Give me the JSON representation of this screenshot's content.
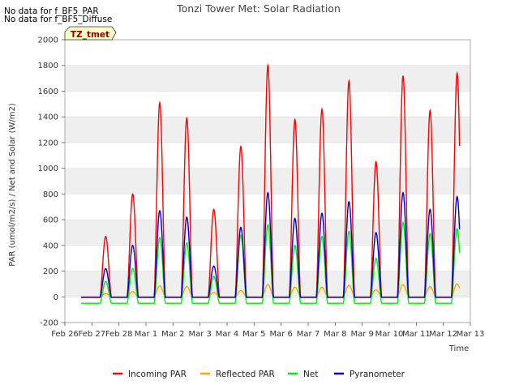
{
  "notices": [
    "No data for f_BF5_PAR",
    "No data for f_BF5_Diffuse"
  ],
  "badge": "TZ_tmet",
  "chart_data": {
    "type": "line",
    "title": "Tonzi Tower Met: Solar Radiation",
    "xlabel": "Time",
    "ylabel": "PAR (umol/m2/s) / Net and Solar (W/m2)",
    "ylim": [
      -200,
      2000
    ],
    "xlim": [
      0,
      15
    ],
    "yticks": [
      -200,
      0,
      200,
      400,
      600,
      800,
      1000,
      1200,
      1400,
      1600,
      1800,
      2000
    ],
    "xtick_labels": [
      "Feb 26",
      "Feb 27",
      "Feb 28",
      "Mar 1",
      "Mar 2",
      "Mar 3",
      "Mar 4",
      "Mar 5",
      "Mar 6",
      "Mar 7",
      "Mar 8",
      "Mar 9",
      "Mar 10",
      "Mar 11",
      "Mar 12",
      "Mar 13"
    ],
    "grid": "horizontal bands",
    "legend_position": "bottom",
    "series": [
      {
        "name": "Incoming PAR",
        "color": "#ff0000",
        "daily_peak": [
          470,
          800,
          1510,
          1390,
          680,
          1170,
          1800,
          1380,
          1460,
          1680,
          1050,
          1720,
          1450,
          1740
        ],
        "night_value": 0
      },
      {
        "name": "Reflected PAR",
        "color": "#ffa500",
        "daily_peak": [
          25,
          40,
          85,
          80,
          35,
          50,
          95,
          75,
          75,
          90,
          55,
          95,
          80,
          100
        ],
        "night_value": 0
      },
      {
        "name": "Net",
        "color": "#00ee00",
        "daily_peak": [
          120,
          220,
          460,
          420,
          160,
          480,
          560,
          400,
          470,
          510,
          300,
          580,
          490,
          530
        ],
        "night_value": -50
      },
      {
        "name": "Pyranometer",
        "color": "#0000cc",
        "daily_peak": [
          220,
          400,
          670,
          620,
          240,
          540,
          810,
          610,
          650,
          740,
          500,
          810,
          680,
          780
        ],
        "night_value": -5
      }
    ]
  }
}
